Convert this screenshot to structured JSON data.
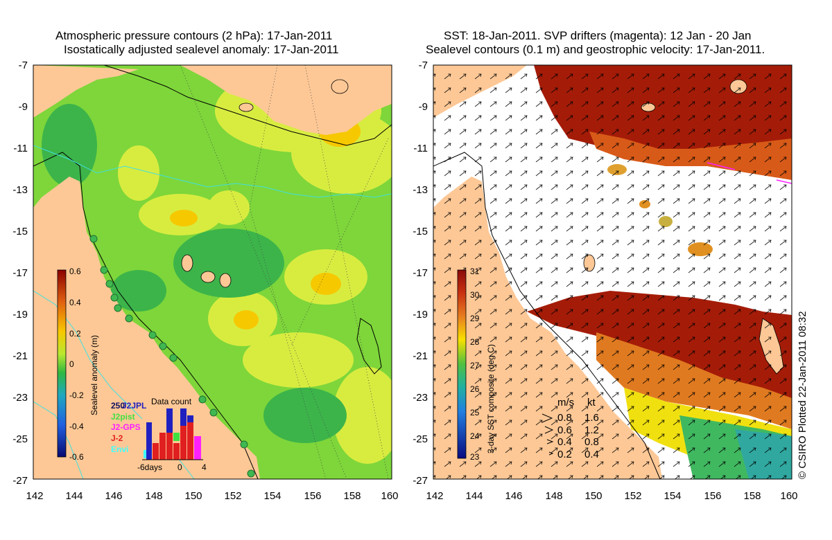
{
  "left_panel": {
    "title_line1": "Atmospheric pressure contours (2 hPa): 17-Jan-2011",
    "title_line2": "Isostatically adjusted sealevel anomaly: 17-Jan-2011",
    "colorbar_label": "Sealevel anomaly (m)",
    "colorbar_ticks": [
      "0.6",
      "0.4",
      "0.2",
      "0",
      "-0.2",
      "-0.4",
      "-0.6"
    ],
    "legend": [
      {
        "label": "J2JPL",
        "color": "#2020c0"
      },
      {
        "label": "J2pist",
        "color": "#40e040"
      },
      {
        "label": "J2-GPS",
        "color": "#ff20ff"
      },
      {
        "label": "J-2",
        "color": "#e02020"
      },
      {
        "label": "Envi",
        "color": "#40ffff"
      }
    ],
    "legend_count": "250",
    "data_count_title": "Data count",
    "data_count_xlabel_left": "-6days",
    "data_count_xlabel_mid": "0",
    "data_count_xlabel_right": "4"
  },
  "right_panel": {
    "title_line1": "SST: 18-Jan-2011. SVP drifters (magenta): 12 Jan - 20 Jan",
    "title_line2": "Sealevel contours (0.1 m) and geostrophic velocity: 17-Jan-2011.",
    "colorbar_label": "3-day SST composite (deg C)",
    "colorbar_ticks": [
      "31",
      "30",
      "29",
      "28",
      "27",
      "26",
      "25",
      "24",
      "23"
    ],
    "speed_header_ms": "m/s",
    "speed_header_kt": "kt",
    "speed_rows": [
      {
        "ms": "0.8",
        "kt": "1.6"
      },
      {
        "ms": "0.6",
        "kt": "1.2"
      },
      {
        "ms": "0.4",
        "kt": "0.8"
      },
      {
        "ms": "0.2",
        "kt": "0.4"
      }
    ],
    "credit": "© CSIRO Plotted 22-Jan-2011 08:32"
  },
  "axes": {
    "y_ticks": [
      "-7",
      "-9",
      "-11",
      "-13",
      "-15",
      "-17",
      "-19",
      "-21",
      "-23",
      "-25",
      "-27"
    ],
    "x_ticks": [
      "142",
      "144",
      "146",
      "148",
      "150",
      "152",
      "154",
      "156",
      "158",
      "160"
    ]
  },
  "colors": {
    "land": "#fdc896",
    "sla_base": "#7ed63a",
    "white_cloud": "#ffffff",
    "sst_warm": "#a01806"
  }
}
